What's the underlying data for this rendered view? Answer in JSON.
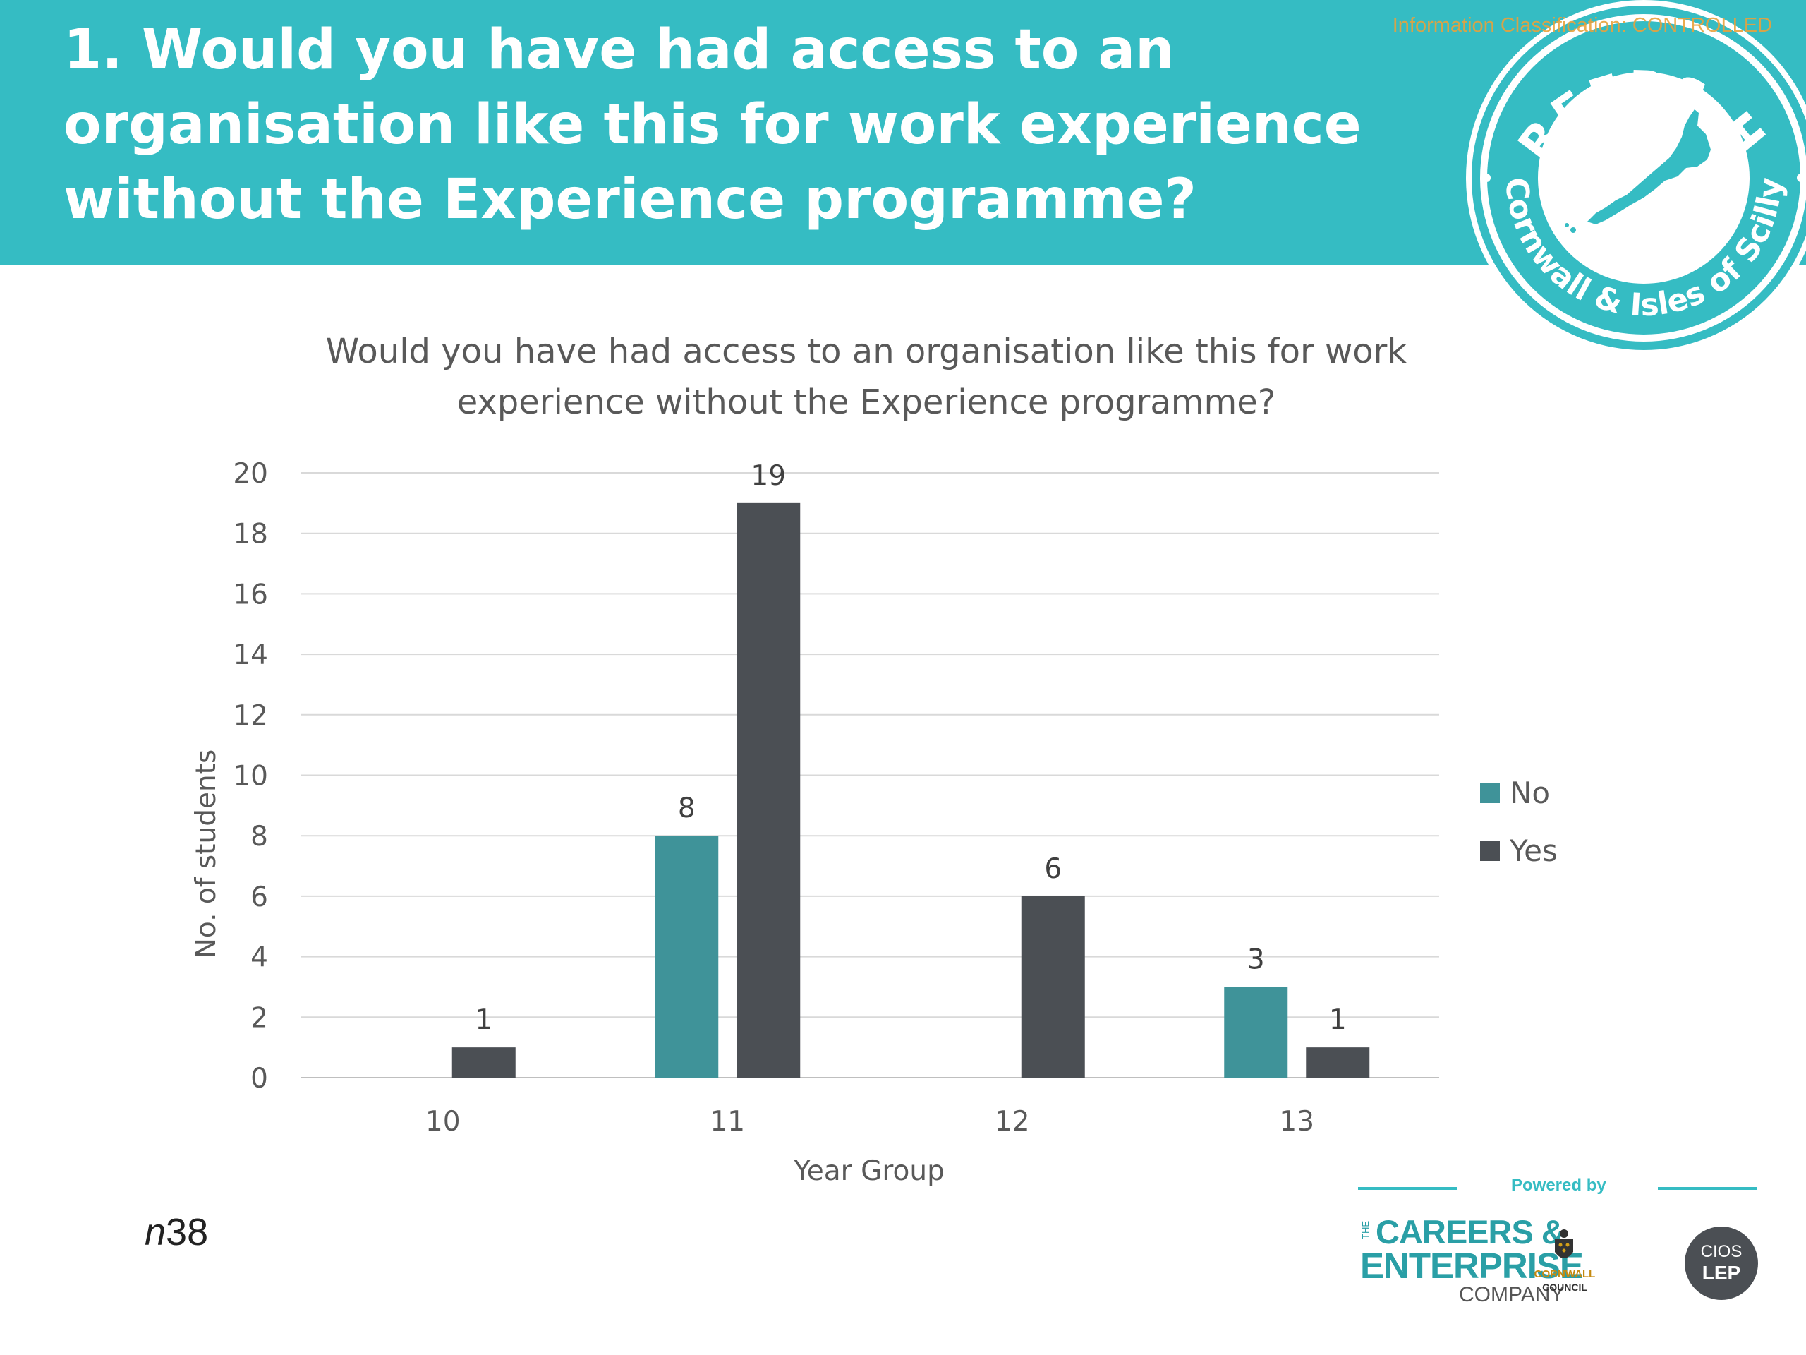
{
  "header": {
    "title": "1. Would you have had access to an organisation like this for work experience without the Experience programme?",
    "classification": "Information Classification: CONTROLLED",
    "color": "#35bcc3"
  },
  "hub_logo": {
    "top_text": "CAREERS HUB",
    "bottom_text": "Cornwall & Isles of Scilly",
    "icon": "cornwall-map-icon"
  },
  "chart_data": {
    "type": "bar",
    "title_lines": [
      "Would you have had access to an organisation like this for work",
      "experience without the Experience programme?"
    ],
    "xlabel": "Year Group",
    "ylabel": "No. of students",
    "categories": [
      "10",
      "11",
      "12",
      "13"
    ],
    "series": [
      {
        "name": "No",
        "color": "#3f9399",
        "values": [
          0,
          8,
          0,
          3
        ]
      },
      {
        "name": "Yes",
        "color": "#4b4f54",
        "values": [
          1,
          19,
          6,
          1
        ]
      }
    ],
    "ylim": [
      0,
      20
    ],
    "yticks": [
      0,
      2,
      4,
      6,
      8,
      10,
      12,
      14,
      16,
      18,
      20
    ],
    "grid": true,
    "legend": "right"
  },
  "sample_size": {
    "prefix": "n",
    "value": "38"
  },
  "powered_by": {
    "label": "Powered by",
    "cec_the": "THE",
    "cec_line1": "CAREERS &",
    "cec_line2": "ENTERPRISE",
    "cec_line3": "COMPANY",
    "council_line1": "CORNWALL",
    "council_line2": "COUNCIL",
    "lep_line1": "CIOS",
    "lep_line2": "LEP"
  }
}
